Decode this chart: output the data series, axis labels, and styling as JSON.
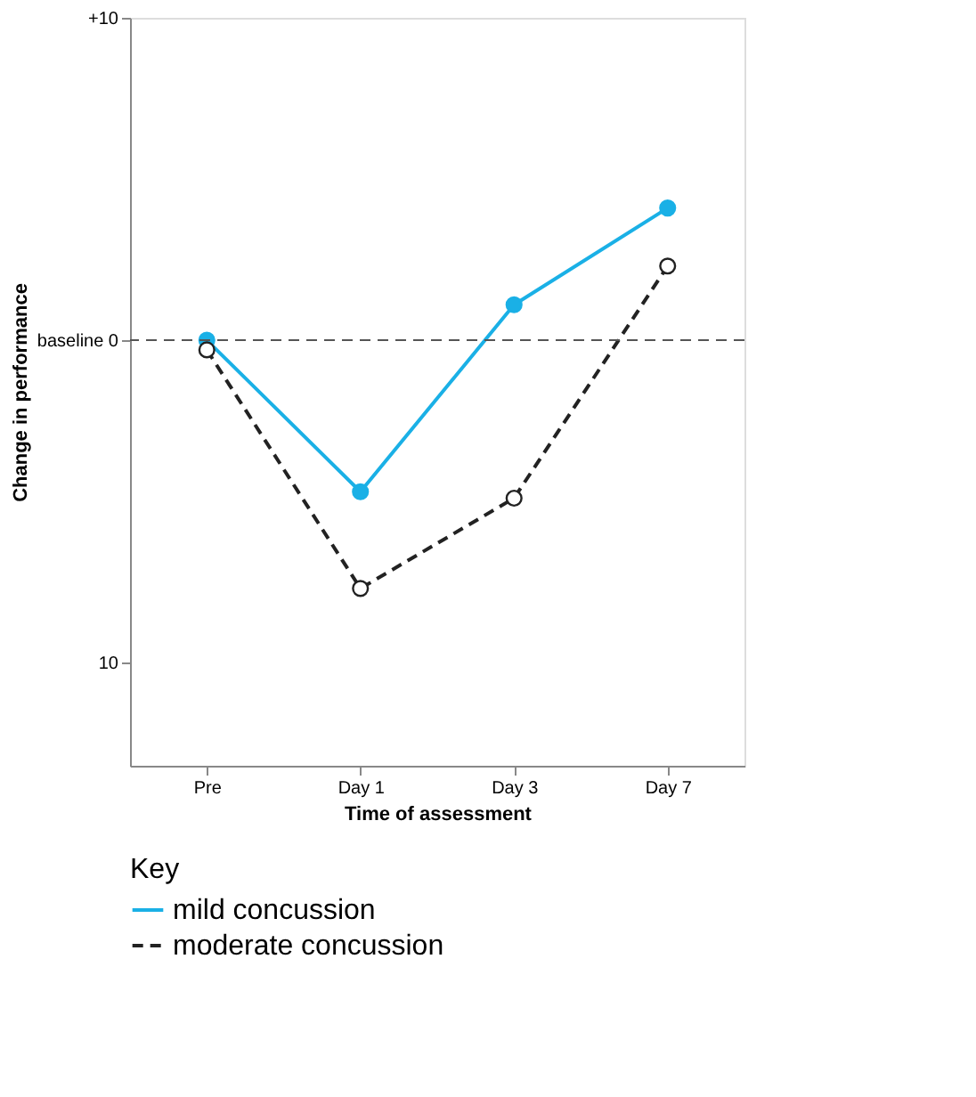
{
  "chart_data": {
    "type": "line",
    "xlabel": "Time of assessment",
    "ylabel": "Change in performance",
    "legend_title": "Key",
    "categories": [
      "Pre",
      "Day 1",
      "Day 3",
      "Day 7"
    ],
    "series": [
      {
        "name": "mild concussion",
        "color": "#1ab0e6",
        "values": [
          0,
          -4.7,
          1.1,
          4.1
        ],
        "line_style": "solid"
      },
      {
        "name": "moderate concussion",
        "color": "#222222",
        "values": [
          -0.3,
          -7.7,
          -4.9,
          2.3
        ],
        "line_style": "dashed"
      }
    ],
    "ylim": [
      -13.2,
      10
    ],
    "yticks": [
      {
        "value": 10,
        "label": "+10"
      },
      {
        "value": 0,
        "label": "baseline 0"
      },
      {
        "value": -10,
        "label": "10"
      }
    ],
    "ref_lines": [
      {
        "axis": "y",
        "value": 0,
        "label": null,
        "color": "#555555",
        "line_style": "dashed"
      }
    ],
    "marker": "circle",
    "grid": false,
    "legend": "bottom"
  }
}
